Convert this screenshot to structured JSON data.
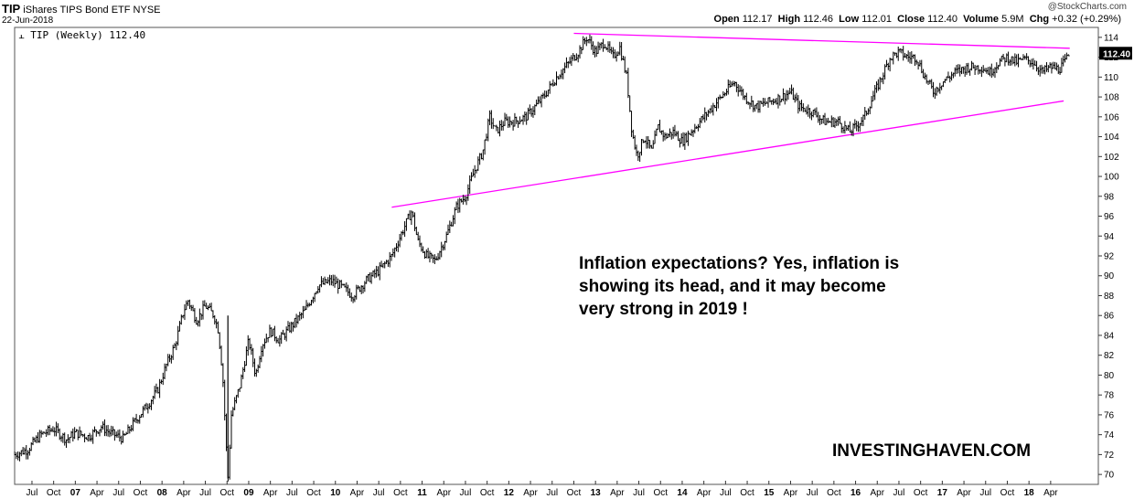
{
  "header": {
    "symbol": "TIP",
    "name": "iShares TIPS Bond ETF",
    "exchange": "NYSE",
    "date": "22-Jun-2018",
    "copyright": "@StockCharts.com",
    "open_label": "Open",
    "open": "112.17",
    "high_label": "High",
    "high": "112.46",
    "low_label": "Low",
    "low": "112.01",
    "close_label": "Close",
    "close": "112.40",
    "volume_label": "Volume",
    "volume": "5.9M",
    "chg_label": "Chg",
    "chg": "+0.32 (+0.29%)"
  },
  "legend": {
    "label": "TIP (Weekly) 112.40"
  },
  "annotation": {
    "line1": "Inflation expectations? Yes, inflation is",
    "line2": "showing its head, and it may become",
    "line3": "very strong in 2019 !"
  },
  "brand": "INVESTINGHAVEN.COM",
  "colors": {
    "price": "#000000",
    "trendline": "#ff00ff",
    "last_badge": "#000000"
  },
  "chart_data": {
    "type": "line",
    "title": "TIP iShares TIPS Bond ETF (Weekly)",
    "ylim": [
      69,
      115
    ],
    "yticks": [
      70,
      72,
      74,
      76,
      78,
      80,
      82,
      84,
      86,
      88,
      90,
      92,
      94,
      96,
      98,
      100,
      102,
      104,
      106,
      108,
      110,
      112,
      114
    ],
    "xlim": [
      2006.3,
      2018.8
    ],
    "xticks": [
      {
        "t": 2006.5,
        "label": "Jul"
      },
      {
        "t": 2006.75,
        "label": "Oct"
      },
      {
        "t": 2007.0,
        "label": "07"
      },
      {
        "t": 2007.25,
        "label": "Apr"
      },
      {
        "t": 2007.5,
        "label": "Jul"
      },
      {
        "t": 2007.75,
        "label": "Oct"
      },
      {
        "t": 2008.0,
        "label": "08"
      },
      {
        "t": 2008.25,
        "label": "Apr"
      },
      {
        "t": 2008.5,
        "label": "Jul"
      },
      {
        "t": 2008.75,
        "label": "Oct"
      },
      {
        "t": 2009.0,
        "label": "09"
      },
      {
        "t": 2009.25,
        "label": "Apr"
      },
      {
        "t": 2009.5,
        "label": "Jul"
      },
      {
        "t": 2009.75,
        "label": "Oct"
      },
      {
        "t": 2010.0,
        "label": "10"
      },
      {
        "t": 2010.25,
        "label": "Apr"
      },
      {
        "t": 2010.5,
        "label": "Jul"
      },
      {
        "t": 2010.75,
        "label": "Oct"
      },
      {
        "t": 2011.0,
        "label": "11"
      },
      {
        "t": 2011.25,
        "label": "Apr"
      },
      {
        "t": 2011.5,
        "label": "Jul"
      },
      {
        "t": 2011.75,
        "label": "Oct"
      },
      {
        "t": 2012.0,
        "label": "12"
      },
      {
        "t": 2012.25,
        "label": "Apr"
      },
      {
        "t": 2012.5,
        "label": "Jul"
      },
      {
        "t": 2012.75,
        "label": "Oct"
      },
      {
        "t": 2013.0,
        "label": "13"
      },
      {
        "t": 2013.25,
        "label": "Apr"
      },
      {
        "t": 2013.5,
        "label": "Jul"
      },
      {
        "t": 2013.75,
        "label": "Oct"
      },
      {
        "t": 2014.0,
        "label": "14"
      },
      {
        "t": 2014.25,
        "label": "Apr"
      },
      {
        "t": 2014.5,
        "label": "Jul"
      },
      {
        "t": 2014.75,
        "label": "Oct"
      },
      {
        "t": 2015.0,
        "label": "15"
      },
      {
        "t": 2015.25,
        "label": "Apr"
      },
      {
        "t": 2015.5,
        "label": "Jul"
      },
      {
        "t": 2015.75,
        "label": "Oct"
      },
      {
        "t": 2016.0,
        "label": "16"
      },
      {
        "t": 2016.25,
        "label": "Apr"
      },
      {
        "t": 2016.5,
        "label": "Jul"
      },
      {
        "t": 2016.75,
        "label": "Oct"
      },
      {
        "t": 2017.0,
        "label": "17"
      },
      {
        "t": 2017.25,
        "label": "Apr"
      },
      {
        "t": 2017.5,
        "label": "Jul"
      },
      {
        "t": 2017.75,
        "label": "Oct"
      },
      {
        "t": 2018.0,
        "label": "18"
      },
      {
        "t": 2018.25,
        "label": "Apr"
      }
    ],
    "series": [
      {
        "name": "TIP (Weekly)",
        "points": [
          [
            2006.3,
            72.0
          ],
          [
            2006.45,
            72.5
          ],
          [
            2006.6,
            74.0
          ],
          [
            2006.75,
            74.6
          ],
          [
            2006.9,
            73.5
          ],
          [
            2007.0,
            74.2
          ],
          [
            2007.15,
            73.8
          ],
          [
            2007.3,
            74.8
          ],
          [
            2007.4,
            74.2
          ],
          [
            2007.55,
            73.6
          ],
          [
            2007.7,
            75.5
          ],
          [
            2007.85,
            77.2
          ],
          [
            2007.95,
            78.5
          ],
          [
            2008.05,
            81.0
          ],
          [
            2008.15,
            83.0
          ],
          [
            2008.25,
            86.5
          ],
          [
            2008.3,
            87.5
          ],
          [
            2008.4,
            85.5
          ],
          [
            2008.5,
            87.0
          ],
          [
            2008.6,
            86.0
          ],
          [
            2008.65,
            84.5
          ],
          [
            2008.7,
            80.0
          ],
          [
            2008.76,
            69.5
          ],
          [
            2008.8,
            76.0
          ],
          [
            2008.9,
            79.0
          ],
          [
            2009.0,
            83.5
          ],
          [
            2009.08,
            80.0
          ],
          [
            2009.15,
            83.0
          ],
          [
            2009.25,
            84.5
          ],
          [
            2009.35,
            83.5
          ],
          [
            2009.5,
            85.0
          ],
          [
            2009.65,
            86.5
          ],
          [
            2009.8,
            89.0
          ],
          [
            2009.95,
            89.5
          ],
          [
            2010.05,
            89.0
          ],
          [
            2010.2,
            88.0
          ],
          [
            2010.35,
            89.5
          ],
          [
            2010.5,
            90.5
          ],
          [
            2010.65,
            92.0
          ],
          [
            2010.8,
            95.0
          ],
          [
            2010.88,
            96.5
          ],
          [
            2010.95,
            93.5
          ],
          [
            2011.05,
            92.0
          ],
          [
            2011.15,
            91.5
          ],
          [
            2011.28,
            94.0
          ],
          [
            2011.4,
            97.0
          ],
          [
            2011.5,
            98.0
          ],
          [
            2011.6,
            100.5
          ],
          [
            2011.7,
            102.5
          ],
          [
            2011.78,
            106.0
          ],
          [
            2011.85,
            104.5
          ],
          [
            2011.95,
            105.5
          ],
          [
            2012.05,
            105.5
          ],
          [
            2012.2,
            106.0
          ],
          [
            2012.3,
            107.0
          ],
          [
            2012.4,
            108.0
          ],
          [
            2012.55,
            110.0
          ],
          [
            2012.7,
            111.5
          ],
          [
            2012.8,
            112.5
          ],
          [
            2012.9,
            114.0
          ],
          [
            2013.0,
            112.5
          ],
          [
            2013.1,
            113.5
          ],
          [
            2013.2,
            112.0
          ],
          [
            2013.28,
            113.0
          ],
          [
            2013.36,
            110.0
          ],
          [
            2013.42,
            104.5
          ],
          [
            2013.48,
            102.0
          ],
          [
            2013.56,
            104.0
          ],
          [
            2013.65,
            102.5
          ],
          [
            2013.72,
            105.0
          ],
          [
            2013.8,
            104.0
          ],
          [
            2013.9,
            104.5
          ],
          [
            2014.0,
            103.5
          ],
          [
            2014.15,
            105.0
          ],
          [
            2014.3,
            106.5
          ],
          [
            2014.45,
            108.0
          ],
          [
            2014.6,
            109.5
          ],
          [
            2014.72,
            108.0
          ],
          [
            2014.85,
            107.0
          ],
          [
            2015.0,
            107.5
          ],
          [
            2015.15,
            108.0
          ],
          [
            2015.25,
            108.5
          ],
          [
            2015.35,
            107.0
          ],
          [
            2015.5,
            106.5
          ],
          [
            2015.65,
            105.5
          ],
          [
            2015.8,
            105.5
          ],
          [
            2015.93,
            104.5
          ],
          [
            2016.0,
            105.0
          ],
          [
            2016.1,
            106.0
          ],
          [
            2016.2,
            108.0
          ],
          [
            2016.3,
            110.0
          ],
          [
            2016.4,
            112.0
          ],
          [
            2016.5,
            112.5
          ],
          [
            2016.6,
            112.0
          ],
          [
            2016.7,
            112.0
          ],
          [
            2016.8,
            110.0
          ],
          [
            2016.9,
            108.5
          ],
          [
            2017.0,
            109.5
          ],
          [
            2017.15,
            110.5
          ],
          [
            2017.3,
            111.0
          ],
          [
            2017.45,
            111.0
          ],
          [
            2017.55,
            110.5
          ],
          [
            2017.65,
            111.5
          ],
          [
            2017.75,
            112.0
          ],
          [
            2017.85,
            111.5
          ],
          [
            2017.95,
            111.8
          ],
          [
            2018.05,
            111.5
          ],
          [
            2018.15,
            110.5
          ],
          [
            2018.25,
            111.0
          ],
          [
            2018.35,
            110.8
          ],
          [
            2018.42,
            111.6
          ],
          [
            2018.47,
            112.4
          ]
        ]
      }
    ],
    "trendlines": [
      {
        "name": "upper resistance",
        "from": [
          2012.75,
          114.4
        ],
        "to": [
          2018.47,
          112.9
        ]
      },
      {
        "name": "lower support",
        "from": [
          2010.65,
          96.9
        ],
        "to": [
          2018.4,
          107.6
        ]
      }
    ],
    "last_value": "112.40"
  }
}
